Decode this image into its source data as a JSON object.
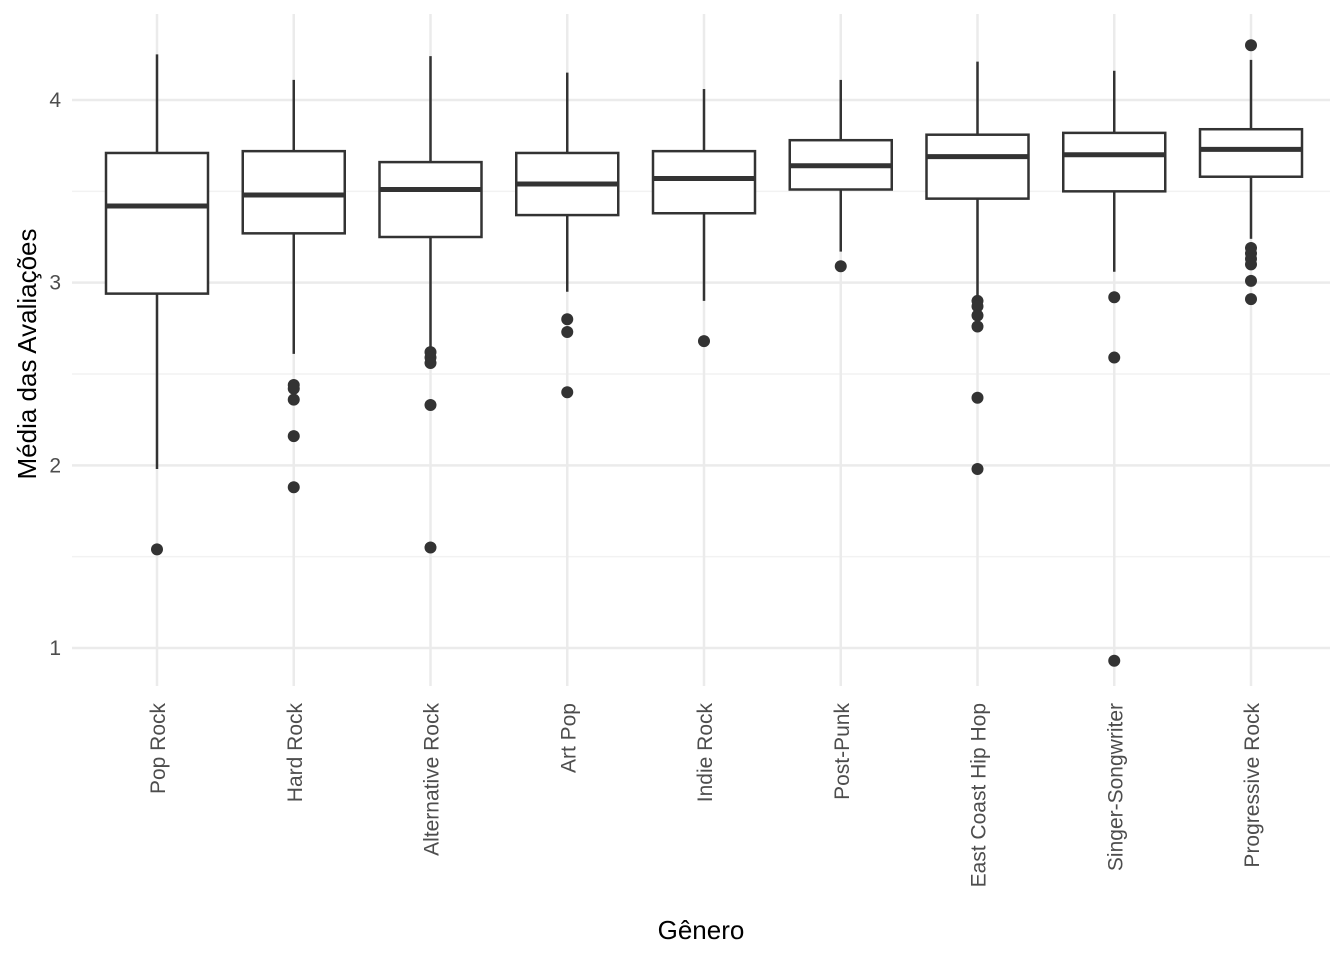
{
  "chart_data": {
    "type": "box",
    "xlabel": "Gênero",
    "ylabel": "Média das Avaliações",
    "ylim": [
      0.7,
      4.5
    ],
    "y_ticks": [
      1,
      2,
      3,
      4
    ],
    "y_tick_labels": [
      "1",
      "2",
      "3",
      "4"
    ],
    "grid": true,
    "x_tick_rotation": "vertical",
    "categories": [
      "Pop Rock",
      "Hard Rock",
      "Alternative Rock",
      "Art Pop",
      "Indie Rock",
      "Post-Punk",
      "East Coast Hip Hop",
      "Singer-Songwriter",
      "Progressive Rock"
    ],
    "series": [
      {
        "category": "Pop Rock",
        "whisker_low": 1.98,
        "q1": 2.94,
        "median": 3.42,
        "q3": 3.71,
        "whisker_high": 4.25,
        "outliers": [
          1.54
        ]
      },
      {
        "category": "Hard Rock",
        "whisker_low": 2.61,
        "q1": 3.27,
        "median": 3.48,
        "q3": 3.72,
        "whisker_high": 4.11,
        "outliers": [
          2.44,
          2.42,
          2.36,
          2.16,
          1.88
        ]
      },
      {
        "category": "Alternative Rock",
        "whisker_low": 2.64,
        "q1": 3.25,
        "median": 3.51,
        "q3": 3.66,
        "whisker_high": 4.24,
        "outliers": [
          2.62,
          2.59,
          2.56,
          2.33,
          1.55
        ]
      },
      {
        "category": "Art Pop",
        "whisker_low": 2.95,
        "q1": 3.37,
        "median": 3.54,
        "q3": 3.71,
        "whisker_high": 4.15,
        "outliers": [
          2.8,
          2.73,
          2.4
        ]
      },
      {
        "category": "Indie Rock",
        "whisker_low": 2.9,
        "q1": 3.38,
        "median": 3.57,
        "q3": 3.72,
        "whisker_high": 4.06,
        "outliers": [
          2.68
        ]
      },
      {
        "category": "Post-Punk",
        "whisker_low": 3.17,
        "q1": 3.51,
        "median": 3.64,
        "q3": 3.78,
        "whisker_high": 4.11,
        "outliers": [
          3.09
        ]
      },
      {
        "category": "East Coast Hip Hop",
        "whisker_low": 2.93,
        "q1": 3.46,
        "median": 3.69,
        "q3": 3.81,
        "whisker_high": 4.21,
        "outliers": [
          2.9,
          2.87,
          2.82,
          2.76,
          2.37,
          1.98
        ]
      },
      {
        "category": "Singer-Songwriter",
        "whisker_low": 3.06,
        "q1": 3.5,
        "median": 3.7,
        "q3": 3.82,
        "whisker_high": 4.16,
        "outliers": [
          2.92,
          2.59,
          0.93
        ]
      },
      {
        "category": "Progressive Rock",
        "whisker_low": 3.24,
        "q1": 3.58,
        "median": 3.73,
        "q3": 3.84,
        "whisker_high": 4.22,
        "outliers": [
          4.3,
          3.19,
          3.16,
          3.13,
          3.1,
          3.01,
          2.91
        ]
      }
    ],
    "colors": {
      "box_fill": "#ffffff",
      "box_stroke": "#333333",
      "outlier": "#333333",
      "grid_major": "#ebebeb",
      "grid_minor": "#f2f2f2",
      "tick_text": "#4d4d4d",
      "title_text": "#000000"
    }
  }
}
